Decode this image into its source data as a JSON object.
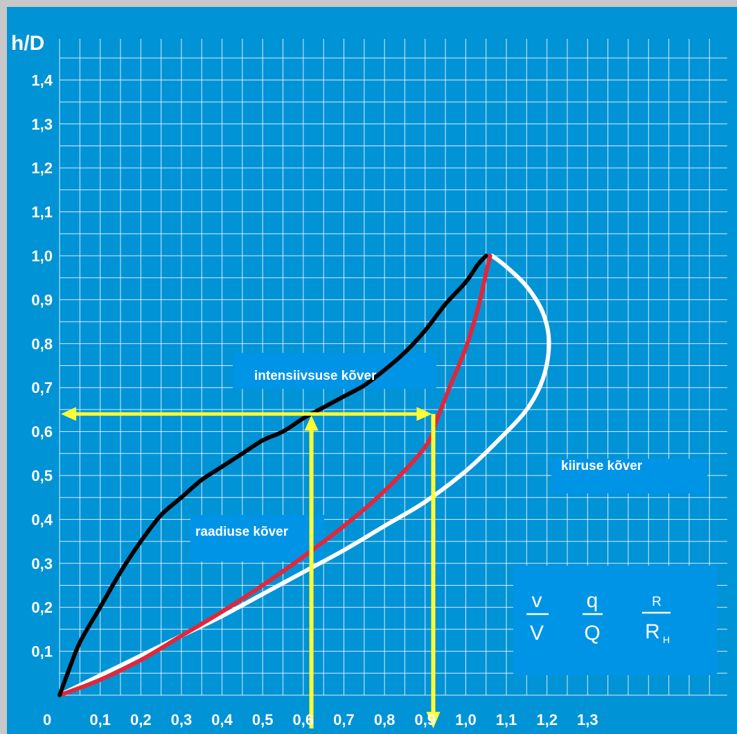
{
  "chart_data": {
    "type": "line",
    "y_axis_label": "h/D",
    "origin_label": "0",
    "x_ticks": [
      {
        "value": 0.1,
        "label": "0,1"
      },
      {
        "value": 0.2,
        "label": "0,2"
      },
      {
        "value": 0.3,
        "label": "0,3"
      },
      {
        "value": 0.4,
        "label": "0,4"
      },
      {
        "value": 0.5,
        "label": "0,5"
      },
      {
        "value": 0.6,
        "label": "0,6"
      },
      {
        "value": 0.7,
        "label": "0,7"
      },
      {
        "value": 0.8,
        "label": "0,8"
      },
      {
        "value": 0.9,
        "label": "0,9"
      },
      {
        "value": 1.0,
        "label": "1,0"
      },
      {
        "value": 1.1,
        "label": "1,1"
      },
      {
        "value": 1.2,
        "label": "1,2"
      },
      {
        "value": 1.3,
        "label": "1,3"
      }
    ],
    "y_ticks": [
      {
        "value": 0.1,
        "label": "0,1"
      },
      {
        "value": 0.2,
        "label": "0,2"
      },
      {
        "value": 0.3,
        "label": "0,3"
      },
      {
        "value": 0.4,
        "label": "0,4"
      },
      {
        "value": 0.5,
        "label": "0,5"
      },
      {
        "value": 0.6,
        "label": "0,6"
      },
      {
        "value": 0.7,
        "label": "0,7"
      },
      {
        "value": 0.8,
        "label": "0,8"
      },
      {
        "value": 0.9,
        "label": "0,9"
      },
      {
        "value": 1.0,
        "label": "1,0"
      },
      {
        "value": 1.1,
        "label": "1,1"
      },
      {
        "value": 1.2,
        "label": "1,2"
      },
      {
        "value": 1.3,
        "label": "1,3"
      },
      {
        "value": 1.4,
        "label": "1,4"
      }
    ],
    "xlim": [
      0,
      1.4
    ],
    "ylim": [
      0,
      1.49
    ],
    "grid": true,
    "grid_step": 0.05,
    "series": [
      {
        "name": "intensiivsuse kõver",
        "color": "#000000",
        "points": [
          [
            0,
            0
          ],
          [
            0.02,
            0.05
          ],
          [
            0.05,
            0.12
          ],
          [
            0.1,
            0.2
          ],
          [
            0.15,
            0.28
          ],
          [
            0.2,
            0.35
          ],
          [
            0.25,
            0.41
          ],
          [
            0.3,
            0.45
          ],
          [
            0.35,
            0.49
          ],
          [
            0.4,
            0.52
          ],
          [
            0.45,
            0.55
          ],
          [
            0.5,
            0.58
          ],
          [
            0.55,
            0.6
          ],
          [
            0.6,
            0.63
          ],
          [
            0.65,
            0.655
          ],
          [
            0.7,
            0.68
          ],
          [
            0.75,
            0.705
          ],
          [
            0.8,
            0.74
          ],
          [
            0.85,
            0.78
          ],
          [
            0.9,
            0.83
          ],
          [
            0.95,
            0.89
          ],
          [
            1.0,
            0.94
          ],
          [
            1.03,
            0.98
          ],
          [
            1.05,
            1.0
          ]
        ]
      },
      {
        "name": "raadiuse kõver",
        "color": "#e3263a",
        "points": [
          [
            0,
            0
          ],
          [
            0.1,
            0.035
          ],
          [
            0.2,
            0.08
          ],
          [
            0.3,
            0.135
          ],
          [
            0.4,
            0.19
          ],
          [
            0.5,
            0.25
          ],
          [
            0.6,
            0.315
          ],
          [
            0.7,
            0.385
          ],
          [
            0.8,
            0.465
          ],
          [
            0.9,
            0.565
          ],
          [
            0.93,
            0.63
          ],
          [
            0.96,
            0.7
          ],
          [
            1.0,
            0.79
          ],
          [
            1.03,
            0.88
          ],
          [
            1.05,
            0.96
          ],
          [
            1.06,
            1.0
          ]
        ]
      },
      {
        "name": "kiiruse kõver",
        "color": "#ffffff",
        "points": [
          [
            0,
            0
          ],
          [
            0.1,
            0.045
          ],
          [
            0.2,
            0.09
          ],
          [
            0.3,
            0.135
          ],
          [
            0.4,
            0.18
          ],
          [
            0.5,
            0.23
          ],
          [
            0.6,
            0.28
          ],
          [
            0.7,
            0.33
          ],
          [
            0.8,
            0.385
          ],
          [
            0.9,
            0.44
          ],
          [
            1.0,
            0.51
          ],
          [
            1.08,
            0.58
          ],
          [
            1.15,
            0.65
          ],
          [
            1.19,
            0.72
          ],
          [
            1.205,
            0.8
          ],
          [
            1.19,
            0.87
          ],
          [
            1.15,
            0.93
          ],
          [
            1.1,
            0.975
          ],
          [
            1.065,
            1.0
          ]
        ]
      }
    ],
    "guides": {
      "color": "#ffff33",
      "horizontal": {
        "y": 0.64,
        "x_from": 0,
        "x_to": 0.92
      },
      "verticals": [
        {
          "x": 0.62,
          "y_from": 0,
          "y_to": 0.64,
          "arrow": "up"
        },
        {
          "x": 0.92,
          "y_from": 0.64,
          "y_to": 0,
          "arrow": "down"
        }
      ]
    },
    "annotations": [
      {
        "text": "intensiivsuse kõver"
      },
      {
        "text": "raadiuse kõver"
      },
      {
        "text": "kiiruse kõver"
      }
    ],
    "ratios": [
      {
        "numerator": "v",
        "denominator": "V"
      },
      {
        "numerator": "q",
        "denominator": "Q"
      },
      {
        "numerator": "R",
        "denominator": "R",
        "denominator_subscript": "H"
      }
    ]
  }
}
